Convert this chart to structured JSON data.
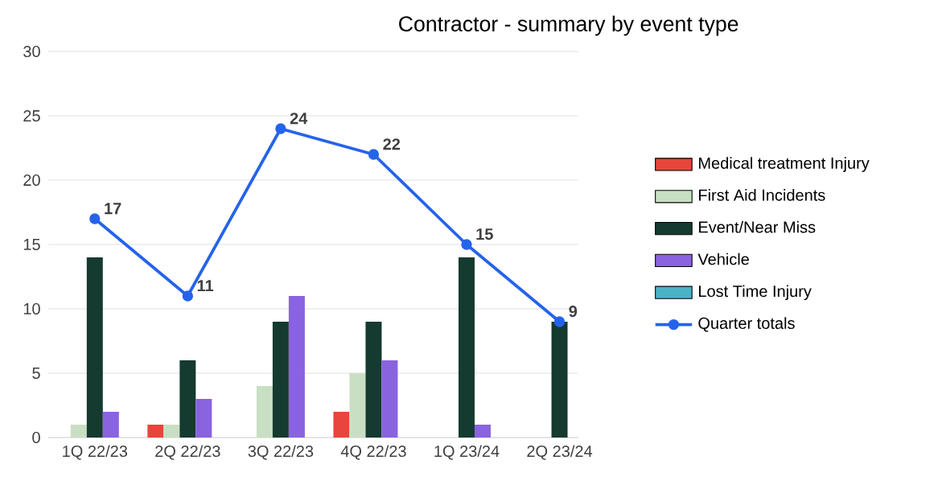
{
  "chart_data": {
    "type": "bar",
    "title": "Contractor - summary by event type",
    "categories": [
      "1Q 22/23",
      "2Q 22/23",
      "3Q 22/23",
      "4Q 22/23",
      "1Q 23/24",
      "2Q 23/24"
    ],
    "series": [
      {
        "name": "Medical treatment Injury",
        "color": "#e8453c",
        "values": [
          0,
          1,
          0,
          2,
          0,
          0
        ]
      },
      {
        "name": "First Aid Incidents",
        "color": "#c9dfc3",
        "values": [
          1,
          1,
          4,
          5,
          0,
          0
        ]
      },
      {
        "name": "Event/Near Miss",
        "color": "#153a30",
        "values": [
          14,
          6,
          9,
          9,
          14,
          9
        ]
      },
      {
        "name": "Vehicle",
        "color": "#8a63e0",
        "values": [
          2,
          3,
          11,
          6,
          1,
          0
        ]
      },
      {
        "name": "Lost Time Injury",
        "color": "#4ab3c6",
        "values": [
          0,
          0,
          0,
          0,
          0,
          0
        ]
      },
      {
        "name": "Quarter totals",
        "type": "line",
        "color": "#2563eb",
        "marker": "circle",
        "values": [
          17,
          11,
          24,
          22,
          15,
          9
        ],
        "value_labels": [
          "17",
          "11",
          "24",
          "22",
          "15",
          "9"
        ]
      }
    ],
    "ylim": [
      0,
      30
    ],
    "yticks": [
      0,
      5,
      10,
      15,
      20,
      25,
      30
    ],
    "grid": "y",
    "legend": "right"
  }
}
